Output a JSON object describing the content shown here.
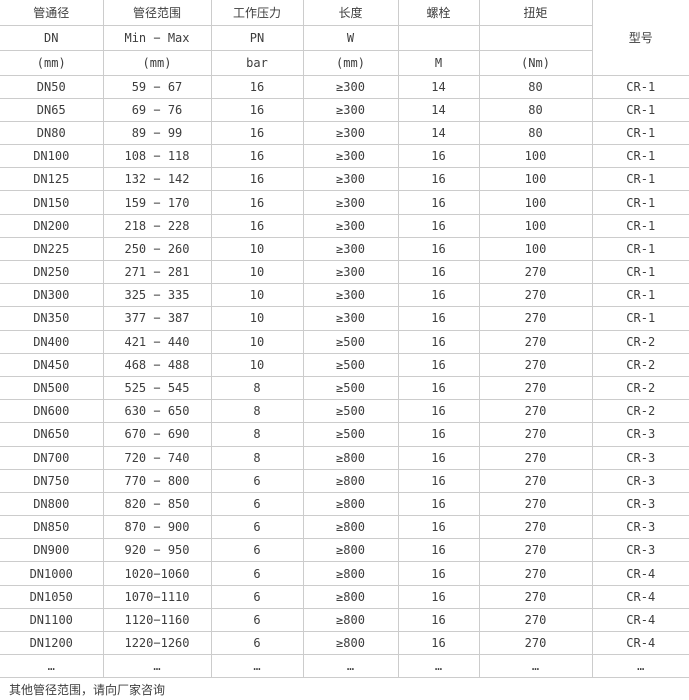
{
  "table": {
    "columns": [
      {
        "title": "管通径",
        "sub": "DN",
        "unit": "(mm)"
      },
      {
        "title": "管径范围",
        "sub": "Min − Max",
        "unit": "(mm)"
      },
      {
        "title": "工作压力",
        "sub": "PN",
        "unit": "bar"
      },
      {
        "title": "长度",
        "sub": "W",
        "unit": "(mm)"
      },
      {
        "title": "螺栓",
        "sub": "",
        "unit": "M"
      },
      {
        "title": "扭矩",
        "sub": "",
        "unit": "(Nm)"
      }
    ],
    "model_column_title": "型号",
    "rows": [
      [
        "DN50",
        "59 − 67",
        "16",
        "≥300",
        "14",
        "80",
        "CR-1"
      ],
      [
        "DN65",
        "69 − 76",
        "16",
        "≥300",
        "14",
        "80",
        "CR-1"
      ],
      [
        "DN80",
        "89 − 99",
        "16",
        "≥300",
        "14",
        "80",
        "CR-1"
      ],
      [
        "DN100",
        "108 − 118",
        "16",
        "≥300",
        "16",
        "100",
        "CR-1"
      ],
      [
        "DN125",
        "132 − 142",
        "16",
        "≥300",
        "16",
        "100",
        "CR-1"
      ],
      [
        "DN150",
        "159 − 170",
        "16",
        "≥300",
        "16",
        "100",
        "CR-1"
      ],
      [
        "DN200",
        "218 − 228",
        "16",
        "≥300",
        "16",
        "100",
        "CR-1"
      ],
      [
        "DN225",
        "250 − 260",
        "10",
        "≥300",
        "16",
        "100",
        "CR-1"
      ],
      [
        "DN250",
        "271 − 281",
        "10",
        "≥300",
        "16",
        "270",
        "CR-1"
      ],
      [
        "DN300",
        "325 − 335",
        "10",
        "≥300",
        "16",
        "270",
        "CR-1"
      ],
      [
        "DN350",
        "377 − 387",
        "10",
        "≥300",
        "16",
        "270",
        "CR-1"
      ],
      [
        "DN400",
        "421 − 440",
        "10",
        "≥500",
        "16",
        "270",
        "CR-2"
      ],
      [
        "DN450",
        "468 − 488",
        "10",
        "≥500",
        "16",
        "270",
        "CR-2"
      ],
      [
        "DN500",
        "525 − 545",
        "8",
        "≥500",
        "16",
        "270",
        "CR-2"
      ],
      [
        "DN600",
        "630 − 650",
        "8",
        "≥500",
        "16",
        "270",
        "CR-2"
      ],
      [
        "DN650",
        "670 − 690",
        "8",
        "≥500",
        "16",
        "270",
        "CR-3"
      ],
      [
        "DN700",
        "720 − 740",
        "8",
        "≥800",
        "16",
        "270",
        "CR-3"
      ],
      [
        "DN750",
        "770 − 800",
        "6",
        "≥800",
        "16",
        "270",
        "CR-3"
      ],
      [
        "DN800",
        "820 − 850",
        "6",
        "≥800",
        "16",
        "270",
        "CR-3"
      ],
      [
        "DN850",
        "870 − 900",
        "6",
        "≥800",
        "16",
        "270",
        "CR-3"
      ],
      [
        "DN900",
        "920 − 950",
        "6",
        "≥800",
        "16",
        "270",
        "CR-3"
      ],
      [
        "DN1000",
        "1020−1060",
        "6",
        "≥800",
        "16",
        "270",
        "CR-4"
      ],
      [
        "DN1050",
        "1070−1110",
        "6",
        "≥800",
        "16",
        "270",
        "CR-4"
      ],
      [
        "DN1100",
        "1120−1160",
        "6",
        "≥800",
        "16",
        "270",
        "CR-4"
      ],
      [
        "DN1200",
        "1220−1260",
        "6",
        "≥800",
        "16",
        "270",
        "CR-4"
      ],
      [
        "…",
        "…",
        "…",
        "…",
        "…",
        "…",
        "…"
      ]
    ],
    "footer_note": "其他管径范围，请向厂家咨询",
    "colors": {
      "border": "#cccccc",
      "text": "#3d3d3d",
      "background": "#ffffff"
    }
  }
}
